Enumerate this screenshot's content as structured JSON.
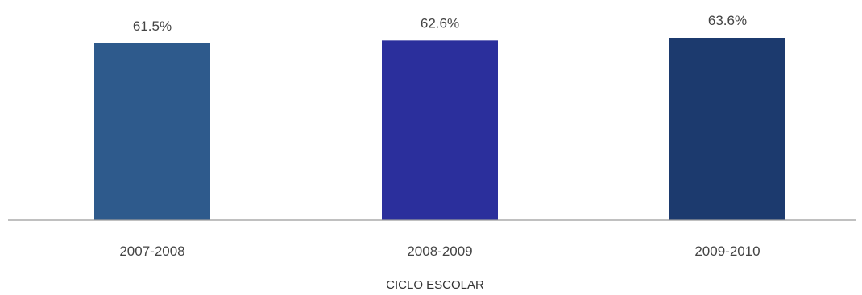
{
  "chart_data": {
    "type": "bar",
    "title": "",
    "xlabel": "CICLO ESCOLAR",
    "ylabel": "",
    "categories": [
      "2007-2008",
      "2008-2009",
      "2009-2010"
    ],
    "series": [
      {
        "values": [
          61.5,
          62.6,
          63.6
        ],
        "labels": [
          "61.5%",
          "62.6%",
          "63.6%"
        ],
        "colors": [
          "#2e5a8c",
          "#2b2f9c",
          "#1c3a6e"
        ]
      }
    ],
    "ylim": [
      0,
      63.6
    ],
    "grid": false,
    "legend": "none"
  }
}
